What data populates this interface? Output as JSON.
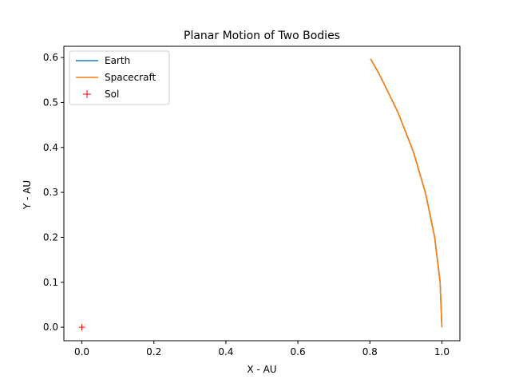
{
  "chart_data": {
    "type": "line",
    "title": "Planar Motion of Two Bodies",
    "xlabel": "X - AU",
    "ylabel": "Y - AU",
    "xlim": [
      -0.05,
      1.05
    ],
    "ylim": [
      -0.03,
      0.625
    ],
    "xticks": [
      0.0,
      0.2,
      0.4,
      0.6,
      0.8,
      1.0
    ],
    "xtick_labels": [
      "0.0",
      "0.2",
      "0.4",
      "0.6",
      "0.8",
      "1.0"
    ],
    "yticks": [
      0.0,
      0.1,
      0.2,
      0.3,
      0.4,
      0.5,
      0.6
    ],
    "ytick_labels": [
      "0.0",
      "0.1",
      "0.2",
      "0.3",
      "0.4",
      "0.5",
      "0.6"
    ],
    "grid": false,
    "legend_position": "upper-left",
    "series": [
      {
        "name": "Earth",
        "kind": "line",
        "color": "#1f77b4",
        "x": [
          1.0,
          0.995,
          0.98,
          0.955,
          0.921,
          0.878,
          0.826,
          0.802
        ],
        "y": [
          0.0,
          0.1,
          0.2,
          0.297,
          0.39,
          0.478,
          0.563,
          0.597
        ]
      },
      {
        "name": "Spacecraft",
        "kind": "line",
        "color": "#ff7f0e",
        "x": [
          1.0,
          0.995,
          0.98,
          0.955,
          0.921,
          0.878,
          0.826,
          0.802
        ],
        "y": [
          0.0,
          0.1,
          0.2,
          0.297,
          0.39,
          0.478,
          0.563,
          0.597
        ]
      },
      {
        "name": "Sol",
        "kind": "marker",
        "marker": "+",
        "color": "#ff0000",
        "x": [
          0.0
        ],
        "y": [
          0.0
        ]
      }
    ]
  }
}
